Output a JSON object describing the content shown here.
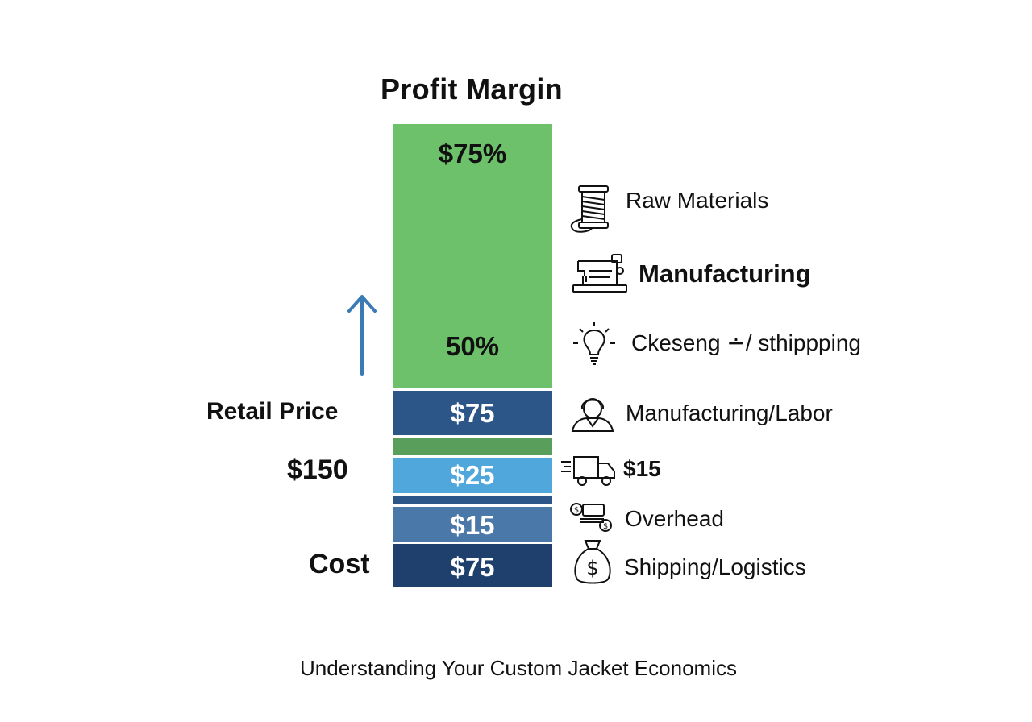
{
  "title": "Profit Margin",
  "bar": {
    "profit_top_label": "$75%",
    "profit_mid_label": "50%",
    "seg_labor_label": "$75",
    "seg_shipping_label": "$25",
    "seg_overhead_label": "$15",
    "seg_cost_label": "$75"
  },
  "left": {
    "retail_label": "Retail Price",
    "retail_value": "$150",
    "cost_label": "Cost"
  },
  "legend": {
    "raw_materials": "Raw Materials",
    "manufacturing": "Manufacturing",
    "ckeseng": "Ckeseng ∸/ sthippping",
    "manufacturing_labor": "Manufacturing/Labor",
    "truck_value": "$15",
    "overhead": "Overhead",
    "shipping_logistics": "Shipping/Logistics"
  },
  "icons": [
    "thread-spool-icon",
    "sewing-machine-icon",
    "lightbulb-icon",
    "worker-icon",
    "delivery-truck-icon",
    "money-bills-icon",
    "money-bag-icon",
    "up-arrow-icon"
  ],
  "colors": {
    "profit_green": "#6cc16a",
    "dark_green": "#5a9e5c",
    "navy": "#2d5688",
    "light_blue": "#4fa7dc",
    "mid_blue": "#4a78a8",
    "dark_navy": "#1f3f6c",
    "arrow_blue": "#3a7bb5"
  },
  "footer": "Understanding Your Custom Jacket Economics"
}
